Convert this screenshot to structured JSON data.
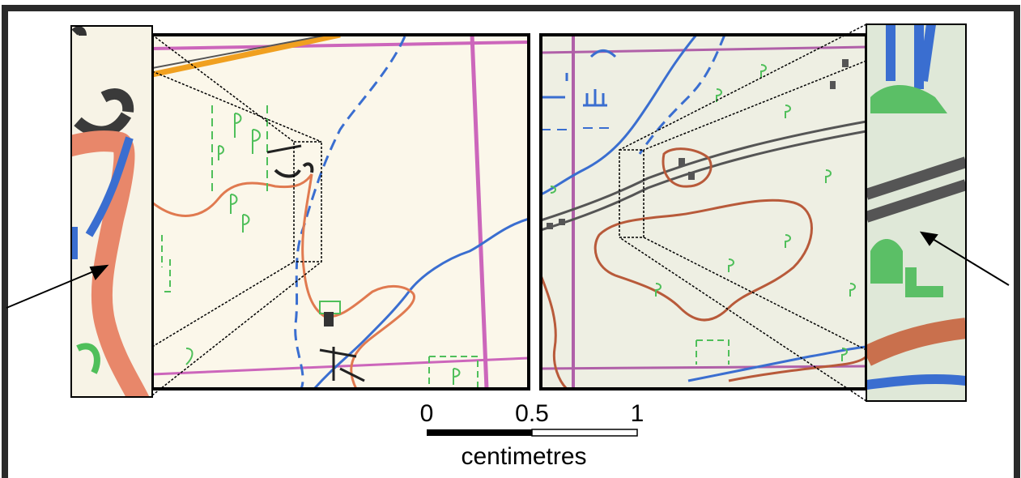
{
  "scale_bar": {
    "tick_labels": [
      "0",
      "0.5",
      "1"
    ],
    "unit": "centimetres"
  },
  "map_colors": {
    "paper_left": "#fbf7ea",
    "paper_right": "#eeefe3",
    "grid_line": "#cc66bb",
    "contour": "#e07a50",
    "contour_dark": "#b85a3a",
    "water": "#3a6ed0",
    "vegetation": "#4fbf5a",
    "road": "#555555",
    "highway": "#f0a020"
  },
  "icons": {
    "arrow_left": "arrow-icon",
    "arrow_right": "arrow-icon"
  }
}
